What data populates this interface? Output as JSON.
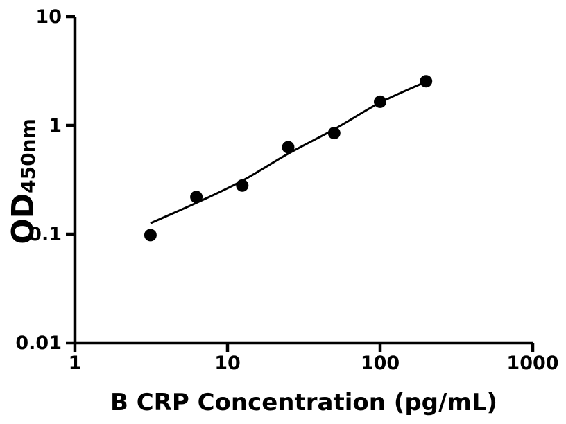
{
  "figure": {
    "background_color": "#ffffff",
    "ink_color": "#000000"
  },
  "chart_data": {
    "type": "scatter",
    "title": "",
    "xlabel": "B CRP Concentration (pg/mL)",
    "ylabel_main": "OD",
    "ylabel_sub": "450nm",
    "x_scale": "log",
    "y_scale": "log",
    "xlim": [
      1,
      1000
    ],
    "ylim": [
      0.01,
      10
    ],
    "grid": false,
    "legend": false,
    "x_ticks": [
      {
        "value": 1,
        "label": "1"
      },
      {
        "value": 10,
        "label": "10"
      },
      {
        "value": 100,
        "label": "100"
      },
      {
        "value": 1000,
        "label": "1000"
      }
    ],
    "y_ticks": [
      {
        "value": 0.01,
        "label": "0.01"
      },
      {
        "value": 0.1,
        "label": "0.1"
      },
      {
        "value": 1,
        "label": "1"
      },
      {
        "value": 10,
        "label": "10"
      }
    ],
    "points": [
      {
        "x": 3.125,
        "y": 0.098
      },
      {
        "x": 6.25,
        "y": 0.22
      },
      {
        "x": 12.5,
        "y": 0.28
      },
      {
        "x": 25,
        "y": 0.63
      },
      {
        "x": 50,
        "y": 0.85
      },
      {
        "x": 100,
        "y": 1.65
      },
      {
        "x": 200,
        "y": 2.55
      }
    ],
    "fit_curve": [
      {
        "x": 3.125,
        "y": 0.126
      },
      {
        "x": 6.25,
        "y": 0.194
      },
      {
        "x": 12.5,
        "y": 0.31
      },
      {
        "x": 25,
        "y": 0.55
      },
      {
        "x": 50,
        "y": 0.92
      },
      {
        "x": 100,
        "y": 1.62
      },
      {
        "x": 200,
        "y": 2.52
      }
    ]
  }
}
